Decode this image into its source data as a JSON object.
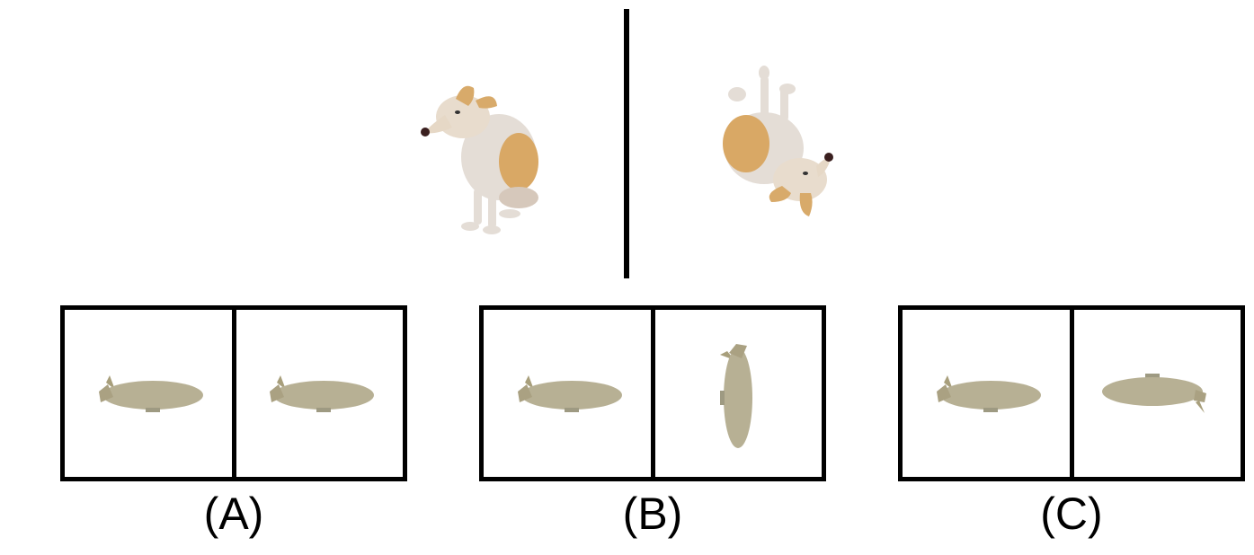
{
  "reference": {
    "left_image": "dog-upright-icon",
    "right_image": "dog-rotated-icon"
  },
  "options": [
    {
      "label": "(A)",
      "left_blimp": "blimp-normal",
      "right_blimp": "blimp-normal"
    },
    {
      "label": "(B)",
      "left_blimp": "blimp-normal",
      "right_blimp": "blimp-vertical"
    },
    {
      "label": "(C)",
      "left_blimp": "blimp-normal",
      "right_blimp": "blimp-flipped"
    }
  ]
}
